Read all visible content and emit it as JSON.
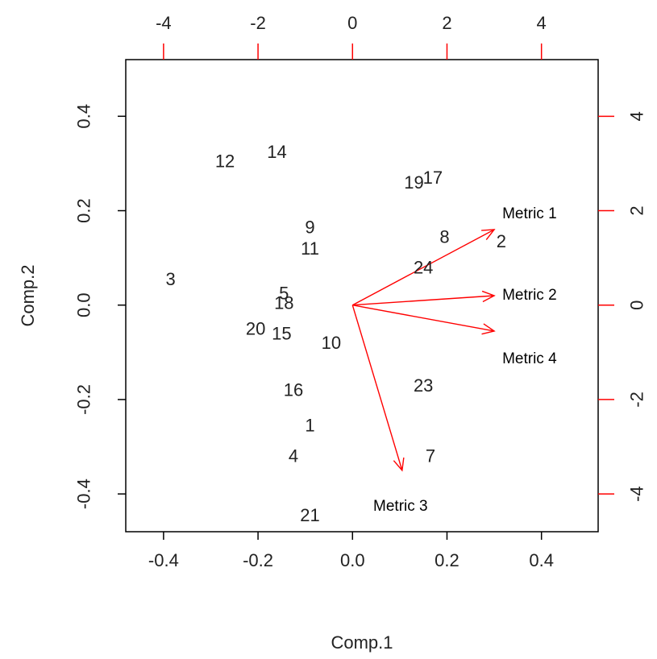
{
  "chart_data": {
    "type": "scatter",
    "subtype": "biplot",
    "title": "",
    "xlabel": "Comp.1",
    "ylabel": "Comp.2",
    "xlim": [
      -0.48,
      0.52
    ],
    "ylim": [
      -0.48,
      0.52
    ],
    "x_ticks": [
      -0.4,
      -0.2,
      0.0,
      0.2,
      0.4
    ],
    "y_ticks": [
      -0.4,
      -0.2,
      0.0,
      0.2,
      0.4
    ],
    "x_tick_labels": [
      "-0.4",
      "-0.2",
      "0.0",
      "0.2",
      "0.4"
    ],
    "y_tick_labels": [
      "-0.4",
      "-0.2",
      "0.0",
      "0.2",
      "0.4"
    ],
    "secondary_axis_color": "#ff0000",
    "top_ticks": [
      -4,
      -2,
      0,
      2,
      4
    ],
    "top_tick_labels": [
      "-4",
      "-2",
      "0",
      "2",
      "4"
    ],
    "right_ticks": [
      -4,
      -2,
      0,
      2,
      4
    ],
    "right_tick_labels": [
      "-4",
      "-2",
      "0",
      "2",
      "4"
    ],
    "points": [
      {
        "label": "1",
        "x": -0.09,
        "y": -0.255
      },
      {
        "label": "2",
        "x": 0.315,
        "y": 0.135
      },
      {
        "label": "3",
        "x": -0.385,
        "y": 0.055
      },
      {
        "label": "4",
        "x": -0.125,
        "y": -0.32
      },
      {
        "label": "5",
        "x": -0.145,
        "y": 0.025
      },
      {
        "label": "7",
        "x": 0.165,
        "y": -0.32
      },
      {
        "label": "8",
        "x": 0.195,
        "y": 0.145
      },
      {
        "label": "9",
        "x": -0.09,
        "y": 0.165
      },
      {
        "label": "10",
        "x": -0.045,
        "y": -0.08
      },
      {
        "label": "11",
        "x": -0.09,
        "y": 0.12
      },
      {
        "label": "12",
        "x": -0.27,
        "y": 0.305
      },
      {
        "label": "14",
        "x": -0.16,
        "y": 0.325
      },
      {
        "label": "15",
        "x": -0.15,
        "y": -0.06
      },
      {
        "label": "16",
        "x": -0.125,
        "y": -0.18
      },
      {
        "label": "17",
        "x": 0.17,
        "y": 0.27
      },
      {
        "label": "18",
        "x": -0.145,
        "y": 0.005
      },
      {
        "label": "19",
        "x": 0.13,
        "y": 0.26
      },
      {
        "label": "20",
        "x": -0.205,
        "y": -0.05
      },
      {
        "label": "21",
        "x": -0.09,
        "y": -0.445
      },
      {
        "label": "23",
        "x": 0.15,
        "y": -0.17
      },
      {
        "label": "24",
        "x": 0.15,
        "y": 0.08
      }
    ],
    "vectors": [
      {
        "name": "Metric 1",
        "x": 0.3,
        "y": 0.16
      },
      {
        "name": "Metric 2",
        "x": 0.3,
        "y": 0.02
      },
      {
        "name": "Metric 4",
        "x": 0.3,
        "y": -0.055
      },
      {
        "name": "Metric 3",
        "x": 0.105,
        "y": -0.35
      }
    ]
  }
}
